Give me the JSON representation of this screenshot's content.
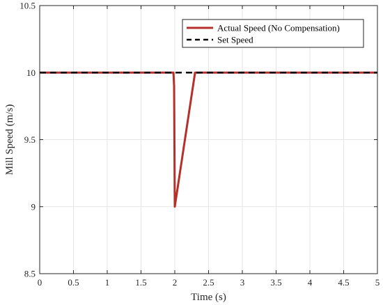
{
  "chart_data": {
    "type": "line",
    "xlabel": "Time (s)",
    "ylabel": "Mill Speed (m/s)",
    "xlim": [
      0,
      5
    ],
    "ylim": [
      8.5,
      10.5
    ],
    "xticks": [
      "0",
      "0.5",
      "1",
      "1.5",
      "2",
      "2.5",
      "3",
      "3.5",
      "4",
      "4.5",
      "5"
    ],
    "yticks": [
      "8.5",
      "9",
      "9.5",
      "10",
      "10.5"
    ],
    "grid": true,
    "legend_position": "top-right",
    "series": [
      {
        "name": "Actual Speed (No Compensation)",
        "color": "#b5302a",
        "style": "solid",
        "x": [
          0,
          1.98,
          1.99,
          2.0,
          2.3,
          5
        ],
        "y": [
          10,
          10,
          9.9,
          9.0,
          10,
          10
        ]
      },
      {
        "name": "Set Speed",
        "color": "#000000",
        "style": "dashed",
        "x": [
          0,
          5
        ],
        "y": [
          10,
          10
        ]
      }
    ]
  }
}
